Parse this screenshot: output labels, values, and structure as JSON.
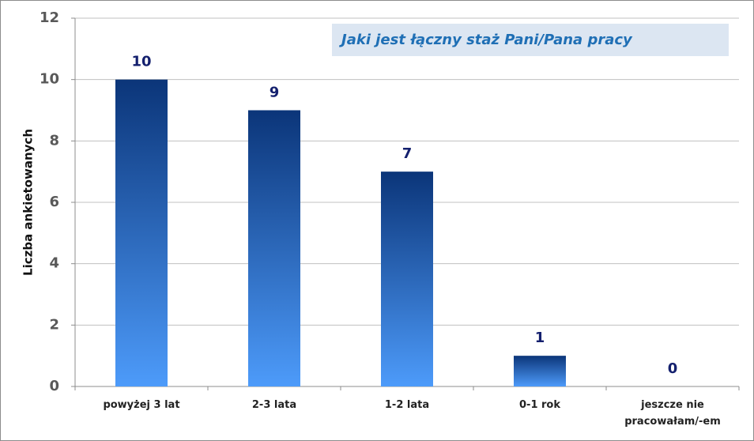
{
  "chart_data": {
    "type": "bar",
    "title": "Jaki jest łączny staż Pani/Pana pracy",
    "y_label": "Liczba ankietowanych",
    "categories": [
      "powyżej 3 lat",
      "2-3 lata",
      "1-2 lata",
      "0-1 rok",
      "jeszcze nie pracowałam/-em"
    ],
    "values": [
      10,
      9,
      7,
      1,
      0
    ],
    "gradient": [
      "#0b3579",
      "#4d9bfa"
    ],
    "label_color": "#14206e",
    "ylim": [
      0,
      12
    ],
    "yticks": [
      0,
      2,
      4,
      6,
      8,
      10,
      12
    ],
    "grid": true
  }
}
